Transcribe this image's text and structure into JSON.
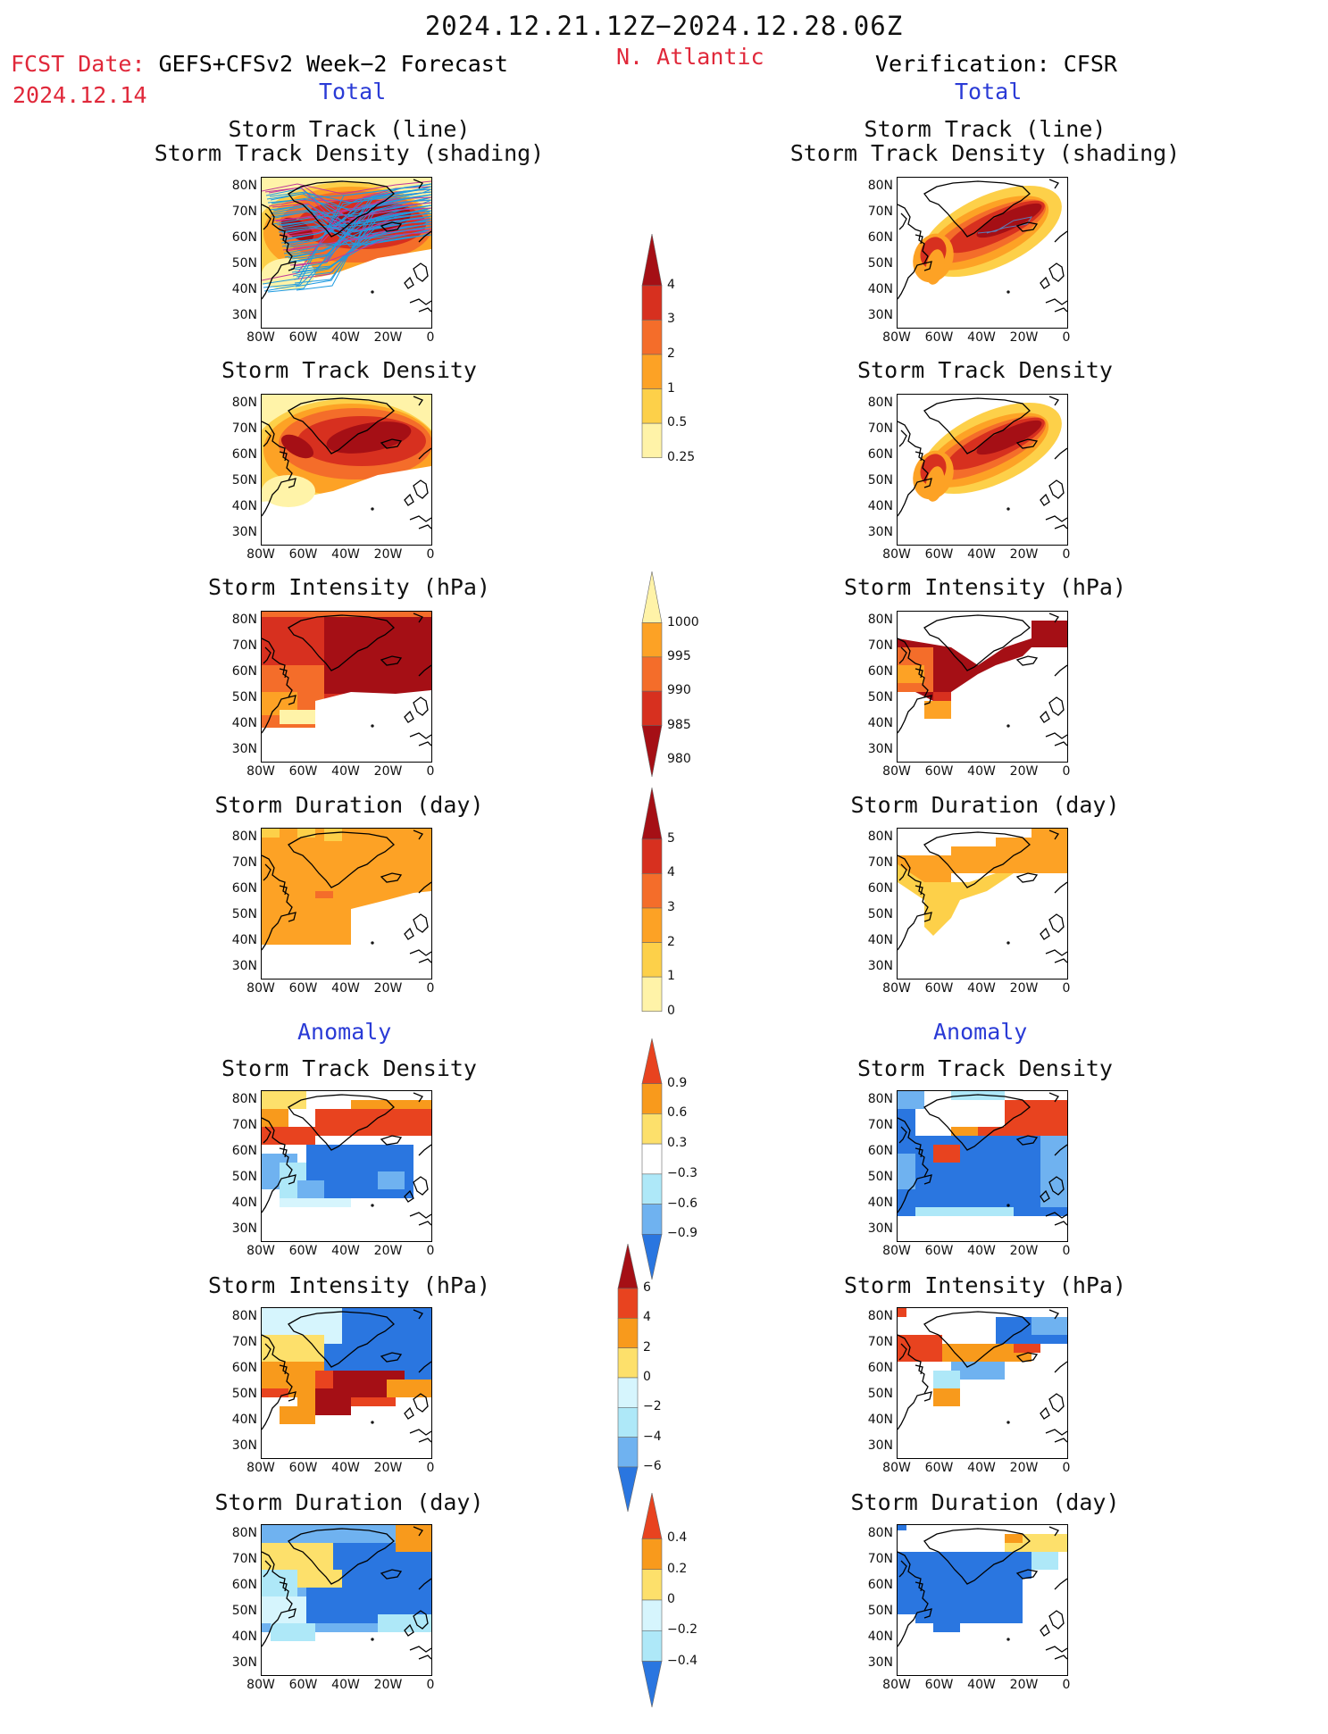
{
  "header": {
    "period": "2024.12.21.12Z−2024.12.28.06Z",
    "fcst_label": "FCST Date:",
    "fcst_model": "GEFS+CFSv2 Week−2 Forecast",
    "fcst_date": "2024.12.14",
    "region": "N. Atlantic",
    "verification": "Verification: CFSR",
    "left_total": "Total",
    "right_total": "Total",
    "left_anomaly": "Anomaly",
    "right_anomaly": "Anomaly"
  },
  "panel_titles": {
    "track_line": "Storm Track (line)",
    "track_shading": "Storm Track Density (shading)",
    "density": "Storm Track Density",
    "intensity": "Storm Intensity (hPa)",
    "duration": "Storm Duration (day)"
  },
  "axes": {
    "lat": [
      "80N",
      "70N",
      "60N",
      "50N",
      "40N",
      "30N"
    ],
    "lon": [
      "80W",
      "60W",
      "40W",
      "20W",
      "0"
    ]
  },
  "colorbars": {
    "density": {
      "labels": [
        "4",
        "3",
        "2",
        "1",
        "0.5",
        "0.25"
      ],
      "colors": [
        "#a50f15",
        "#d7301f",
        "#f46d2a",
        "#fda225",
        "#fdd049",
        "#fff3a8"
      ]
    },
    "intensity": {
      "labels": [
        "1000",
        "995",
        "990",
        "985",
        "980"
      ],
      "colors": [
        "#fff3a8",
        "#fda225",
        "#f46d2a",
        "#d7301f",
        "#a50f15"
      ]
    },
    "duration": {
      "labels": [
        "5",
        "4",
        "3",
        "2",
        "1",
        "0"
      ],
      "colors": [
        "#a50f15",
        "#d7301f",
        "#f46d2a",
        "#fda225",
        "#fdd049",
        "#fff3a8"
      ]
    },
    "anom_density": {
      "labels": [
        "0.9",
        "0.6",
        "0.3",
        "−0.3",
        "−0.6",
        "−0.9"
      ],
      "colors": [
        "#e8431f",
        "#f89a1c",
        "#fde06b",
        "#ffffff",
        "#aee8f8",
        "#6fb2f0",
        "#2a76e0"
      ]
    },
    "anom_intensity": {
      "labels": [
        "6",
        "4",
        "2",
        "0",
        "−2",
        "−4",
        "−6"
      ],
      "colors": [
        "#a50f15",
        "#e8431f",
        "#f89a1c",
        "#fde06b",
        "#d6f5fd",
        "#aee8f8",
        "#6fb2f0",
        "#2a76e0"
      ]
    },
    "anom_duration": {
      "labels": [
        "0.4",
        "0.2",
        "0",
        "−0.2",
        "−0.4"
      ],
      "colors": [
        "#e8431f",
        "#f89a1c",
        "#fde06b",
        "#d6f5fd",
        "#aee8f8",
        "#2a76e0"
      ]
    }
  },
  "colors": {
    "title_red": "#e0283a",
    "title_blue": "#2a3bd6",
    "track_line": "#1f9be0"
  }
}
